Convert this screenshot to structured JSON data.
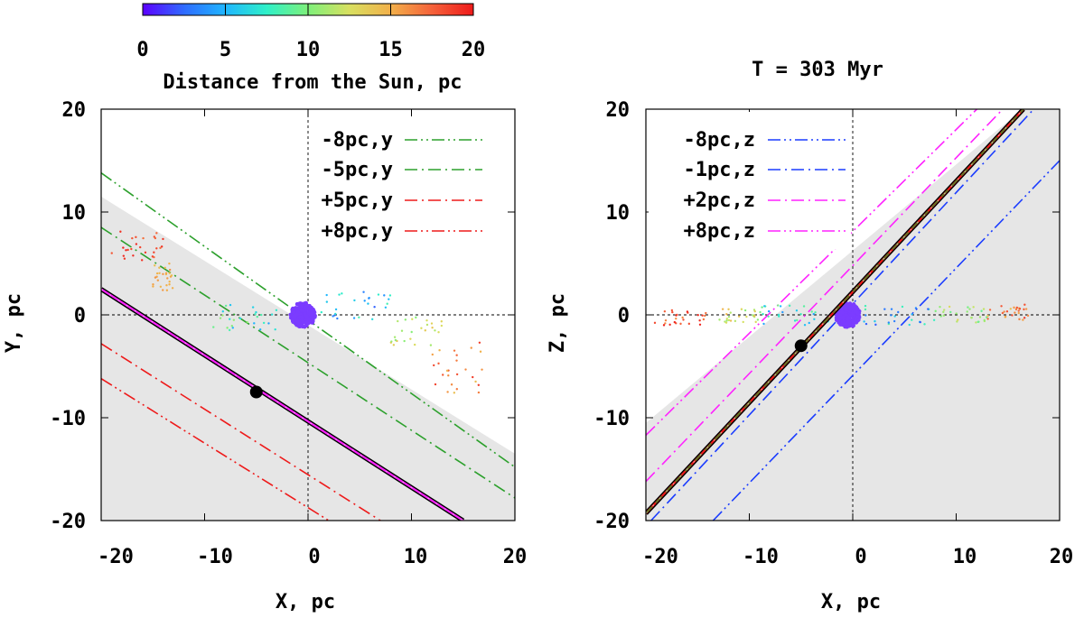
{
  "colorbar": {
    "tick_labels": [
      "0",
      "5",
      "10",
      "15",
      "20"
    ],
    "ticks": [
      0,
      5,
      10,
      15,
      20
    ],
    "range": [
      0,
      20
    ],
    "label": "Distance from the Sun, pc",
    "palette": [
      "#5b00ff",
      "#2f6bff",
      "#1fb6ff",
      "#2ff0c8",
      "#7ef07a",
      "#d8e060",
      "#f2b04a",
      "#f5623a",
      "#ee1a1a"
    ]
  },
  "colors": {
    "shade": "#e6e6e6",
    "green": "#2ca02c",
    "red": "#ee1a1a",
    "blue": "#1a3cff",
    "magenta": "#ff22ff",
    "black": "#000000",
    "sun_cluster": "#7b3cff"
  },
  "chart_data": [
    {
      "type": "scatter",
      "panel": "left",
      "title": "",
      "xlabel": "X, pc",
      "ylabel": "Y, pc",
      "xlim": [
        -20,
        20
      ],
      "ylim": [
        -20,
        20
      ],
      "x_ticks": [
        "-20",
        "-10",
        "0",
        "10",
        "20"
      ],
      "y_ticks": [
        "20",
        "10",
        "0",
        "-10",
        "-20"
      ],
      "grid": false,
      "legend_placement": "top-right",
      "shaded_region": {
        "boundary": [
          [
            -20,
            11.5
          ],
          [
            20,
            -13.5
          ]
        ],
        "side": "below"
      },
      "crosshair": [
        0,
        0
      ],
      "marker_point": [
        -5,
        -7.5
      ],
      "thick_line": {
        "from": [
          -20,
          2.5
        ],
        "to": [
          15,
          -20
        ],
        "colors": [
          "black",
          "magenta"
        ]
      },
      "series": [
        {
          "name": "-8pc,y",
          "style": "dash-dot-dot",
          "color": "green",
          "line": [
            [
              -20,
              13.8
            ],
            [
              20,
              -14.8
            ]
          ]
        },
        {
          "name": "-5pc,y",
          "style": "dash-dot",
          "color": "green",
          "line": [
            [
              -20,
              8.5
            ],
            [
              20,
              -17.8
            ]
          ]
        },
        {
          "name": "+5pc,y",
          "style": "dash-dot",
          "color": "red",
          "line": [
            [
              -20,
              -2.8
            ],
            [
              7,
              -20
            ]
          ]
        },
        {
          "name": "+8pc,y",
          "style": "dash-dot-dot",
          "color": "red",
          "line": [
            [
              -20,
              -6.2
            ],
            [
              2,
              -20
            ]
          ]
        }
      ],
      "scatter_groups": [
        {
          "x_range": [
            -19,
            -14
          ],
          "y_range": [
            5,
            8.5
          ],
          "dist": [
            17,
            20
          ]
        },
        {
          "x_range": [
            -15,
            -13
          ],
          "y_range": [
            2,
            5
          ],
          "dist": [
            14,
            16
          ]
        },
        {
          "x_range": [
            -10,
            -3
          ],
          "y_range": [
            -1.5,
            1
          ],
          "dist": [
            4,
            11
          ]
        },
        {
          "x_range": [
            1,
            8
          ],
          "y_range": [
            -0.5,
            2.5
          ],
          "dist": [
            2,
            9
          ]
        },
        {
          "x_range": [
            8,
            13
          ],
          "y_range": [
            -3,
            0
          ],
          "dist": [
            10,
            14
          ]
        },
        {
          "x_range": [
            12,
            17
          ],
          "y_range": [
            -8,
            -2.5
          ],
          "dist": [
            14,
            19
          ]
        }
      ],
      "sun_cluster": {
        "center": [
          -0.5,
          0
        ],
        "radius": [
          1.2,
          1.2
        ]
      }
    },
    {
      "type": "scatter",
      "panel": "right",
      "title": "T = 303 Myr",
      "xlabel": "X, pc",
      "ylabel": "Z, pc",
      "xlim": [
        -20,
        20
      ],
      "ylim": [
        -20,
        20
      ],
      "x_ticks": [
        "-20",
        "-10",
        "0",
        "10",
        "20"
      ],
      "y_ticks": [
        "20",
        "10",
        "0",
        "-10",
        "-20"
      ],
      "grid": false,
      "legend_placement": "top-left",
      "shaded_region": {
        "boundary": [
          [
            -20,
            -10.5
          ],
          [
            20,
            23
          ]
        ],
        "side": "below"
      },
      "crosshair": [
        0,
        0
      ],
      "marker_point": [
        -5,
        -3
      ],
      "thick_line": {
        "from": [
          -20,
          -19.3
        ],
        "to": [
          16.5,
          20
        ],
        "colors": [
          "black",
          "red",
          "green"
        ]
      },
      "series": [
        {
          "name": "-8pc,z",
          "style": "dash-dot-dot",
          "color": "blue",
          "line": [
            [
              -13.5,
              -20
            ],
            [
              20,
              15
            ]
          ]
        },
        {
          "name": "-1pc,z",
          "style": "dash-dot",
          "color": "blue",
          "line": [
            [
              -19.5,
              -20
            ],
            [
              17.5,
              20
            ]
          ]
        },
        {
          "name": "+2pc,z",
          "style": "dash-dot",
          "color": "magenta",
          "line": [
            [
              -20,
              -16.2
            ],
            [
              14.5,
              20
            ]
          ]
        },
        {
          "name": "+8pc,z",
          "style": "dash-dot-dot",
          "color": "magenta",
          "line": [
            [
              -20,
              -11.7
            ],
            [
              12,
              20
            ]
          ]
        }
      ],
      "scatter_groups": [
        {
          "x_range": [
            -19.5,
            -14
          ],
          "y_range": [
            -1,
            0.6
          ],
          "dist": [
            16,
            20
          ]
        },
        {
          "x_range": [
            -14,
            -9
          ],
          "y_range": [
            -0.8,
            0.6
          ],
          "dist": [
            10,
            15
          ]
        },
        {
          "x_range": [
            -9,
            -2
          ],
          "y_range": [
            -1,
            1
          ],
          "dist": [
            4,
            10
          ]
        },
        {
          "x_range": [
            1,
            8
          ],
          "y_range": [
            -1,
            1
          ],
          "dist": [
            2,
            9
          ]
        },
        {
          "x_range": [
            8,
            13
          ],
          "y_range": [
            -0.8,
            0.8
          ],
          "dist": [
            9,
            13
          ]
        },
        {
          "x_range": [
            13,
            17
          ],
          "y_range": [
            -0.6,
            1
          ],
          "dist": [
            14,
            19
          ]
        }
      ],
      "sun_cluster": {
        "center": [
          -0.5,
          0
        ],
        "radius": [
          1.2,
          1.2
        ]
      }
    }
  ]
}
